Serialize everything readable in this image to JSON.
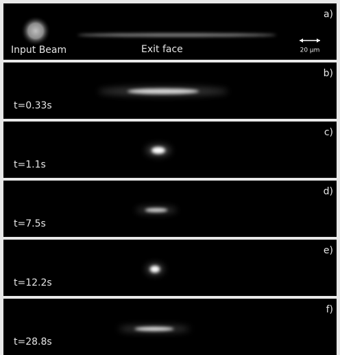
{
  "panels": [
    {
      "label": "a)",
      "input_label": "Input Beam",
      "exit_label": "Exit face",
      "scale_label": "20 µm"
    },
    {
      "label": "b)",
      "time": "t=0.33s"
    },
    {
      "label": "c)",
      "time": "t=1.1s"
    },
    {
      "label": "d)",
      "time": "t=7.5s"
    },
    {
      "label": "e)",
      "time": "t=12.2s"
    },
    {
      "label": "f)",
      "time": "t=28.8s"
    }
  ]
}
